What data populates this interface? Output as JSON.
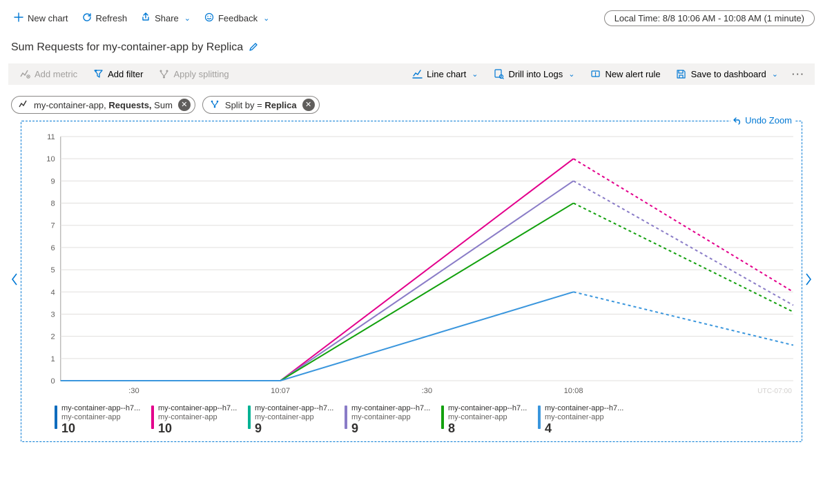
{
  "topbar": {
    "new_chart": "New chart",
    "refresh": "Refresh",
    "share": "Share",
    "feedback": "Feedback",
    "time_range": "Local Time: 8/8 10:06 AM - 10:08 AM (1 minute)"
  },
  "title": "Sum Requests for my-container-app by Replica",
  "toolbar": {
    "add_metric": "Add metric",
    "add_filter": "Add filter",
    "apply_splitting": "Apply splitting",
    "chart_type": "Line chart",
    "drill_logs": "Drill into Logs",
    "new_alert": "New alert rule",
    "save_dashboard": "Save to dashboard"
  },
  "pills": {
    "metric_prefix": "my-container-app,",
    "metric_name": "Requests,",
    "metric_agg": "Sum",
    "split_prefix": "Split by =",
    "split_value": "Replica"
  },
  "undo_zoom": "Undo Zoom",
  "chart": {
    "ymin": 0,
    "ymax": 11,
    "ytick_step": 1,
    "x_labels": [
      ":30",
      "10:07",
      ":30",
      "10:08"
    ],
    "x_positions": [
      0.1,
      0.3,
      0.5,
      0.7
    ],
    "tz_label": "UTC-07:00",
    "peak_x": 0.7,
    "end_x": 1.0,
    "series": [
      {
        "color": "#e3008c",
        "peak": 10,
        "end": 4.0
      },
      {
        "color": "#8a7cc7",
        "peak": 9,
        "end": 3.4
      },
      {
        "color": "#13a10e",
        "peak": 8,
        "end": 3.1
      },
      {
        "color": "#3a96dd",
        "peak": 4,
        "end": 1.6
      }
    ]
  },
  "legend": [
    {
      "color": "#0f6cbd",
      "name": "my-container-app--h7...",
      "sub": "my-container-app",
      "value": "10"
    },
    {
      "color": "#e3008c",
      "name": "my-container-app--h7...",
      "sub": "my-container-app",
      "value": "10"
    },
    {
      "color": "#00b294",
      "name": "my-container-app--h7...",
      "sub": "my-container-app",
      "value": "9"
    },
    {
      "color": "#8a7cc7",
      "name": "my-container-app--h7...",
      "sub": "my-container-app",
      "value": "9"
    },
    {
      "color": "#13a10e",
      "name": "my-container-app--h7...",
      "sub": "my-container-app",
      "value": "8"
    },
    {
      "color": "#3a96dd",
      "name": "my-container-app--h7...",
      "sub": "my-container-app",
      "value": "4"
    }
  ]
}
